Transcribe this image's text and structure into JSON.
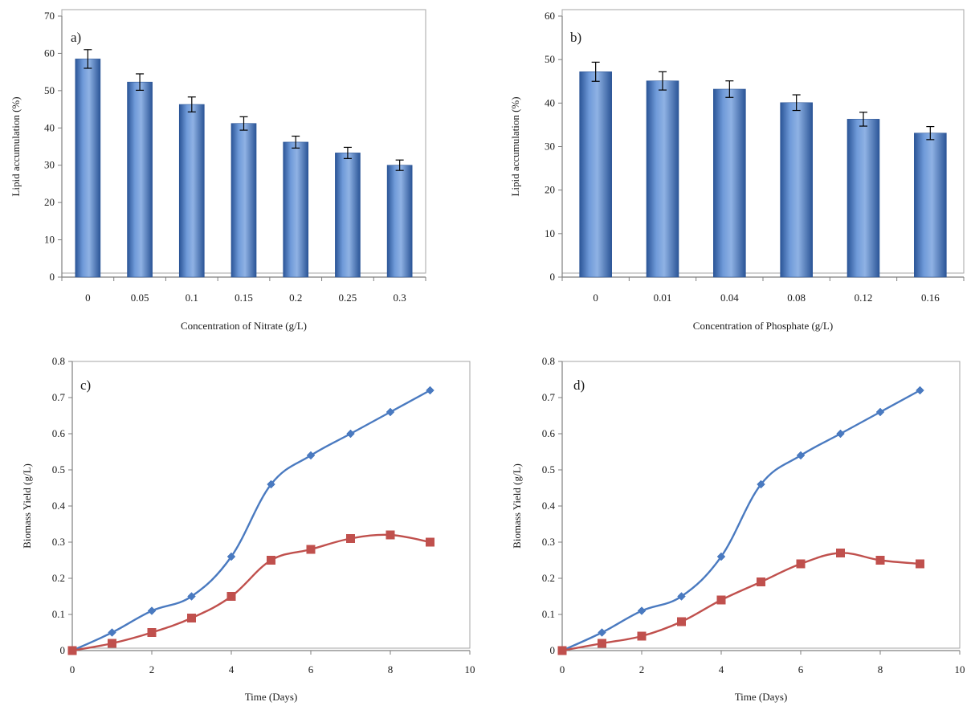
{
  "colors": {
    "bar": "#4a7cc7",
    "bar_dark": "#2b5597",
    "bar_light": "#8fb2e4",
    "series_blue": "#4a7ac0",
    "series_red": "#c0504d",
    "axis": "#7f7f7f",
    "frame": "#a6a6a6"
  },
  "chart_data": [
    {
      "type": "bar",
      "panel_label": "a)",
      "categories": [
        "0",
        "0.05",
        "0.1",
        "0.15",
        "0.2",
        "0.25",
        "0.3"
      ],
      "values": [
        58.5,
        52.3,
        46.3,
        41.2,
        36.2,
        33.3,
        30.0
      ],
      "errors": [
        2.5,
        2.2,
        2.0,
        1.8,
        1.6,
        1.5,
        1.4
      ],
      "xlabel": "Concentration of Nitrate (g/L)",
      "ylabel": "Lipid accumulation (%)",
      "ylim": [
        0,
        70
      ],
      "yticks": [
        "0",
        "10",
        "20",
        "30",
        "40",
        "50",
        "60",
        "70"
      ],
      "grid": false,
      "legend": "none"
    },
    {
      "type": "bar",
      "panel_label": "b)",
      "categories": [
        "0",
        "0.01",
        "0.04",
        "0.08",
        "0.12",
        "0.16"
      ],
      "values": [
        47.2,
        45.1,
        43.2,
        40.1,
        36.3,
        33.1
      ],
      "errors": [
        2.2,
        2.1,
        1.9,
        1.8,
        1.6,
        1.5
      ],
      "xlabel": "Concentration of Phosphate (g/L)",
      "ylabel": "Lipid accumulation (%)",
      "ylim": [
        0,
        60
      ],
      "yticks": [
        "0",
        "10",
        "20",
        "30",
        "40",
        "50",
        "60"
      ],
      "grid": false,
      "legend": "none"
    },
    {
      "type": "line",
      "panel_label": "c)",
      "x": [
        0,
        1,
        2,
        3,
        4,
        5,
        6,
        7,
        8,
        9
      ],
      "series": [
        {
          "marker": "diamond",
          "color": "#4a7ac0",
          "values": [
            0,
            0.05,
            0.11,
            0.15,
            0.26,
            0.46,
            0.54,
            0.6,
            0.66,
            0.72
          ]
        },
        {
          "marker": "square",
          "color": "#c0504d",
          "values": [
            0,
            0.02,
            0.05,
            0.09,
            0.15,
            0.25,
            0.28,
            0.31,
            0.32,
            0.3
          ]
        }
      ],
      "xlabel": "Time (Days)",
      "ylabel": "Biomass Yield (g/L)",
      "xlim": [
        0,
        10
      ],
      "ylim": [
        0,
        0.8
      ],
      "xticks": [
        "0",
        "2",
        "4",
        "6",
        "8",
        "10"
      ],
      "yticks": [
        "0",
        "0.1",
        "0.2",
        "0.3",
        "0.4",
        "0.5",
        "0.6",
        "0.7",
        "0.8"
      ],
      "grid": false,
      "legend": "none"
    },
    {
      "type": "line",
      "panel_label": "d)",
      "x": [
        0,
        1,
        2,
        3,
        4,
        5,
        6,
        7,
        8,
        9
      ],
      "series": [
        {
          "marker": "diamond",
          "color": "#4a7ac0",
          "values": [
            0,
            0.05,
            0.11,
            0.15,
            0.26,
            0.46,
            0.54,
            0.6,
            0.66,
            0.72
          ]
        },
        {
          "marker": "square",
          "color": "#c0504d",
          "values": [
            0,
            0.02,
            0.04,
            0.08,
            0.14,
            0.19,
            0.24,
            0.27,
            0.25,
            0.24
          ]
        }
      ],
      "xlabel": "Time (Days)",
      "ylabel": "Biomass Yield (g/L)",
      "xlim": [
        0,
        10
      ],
      "ylim": [
        0,
        0.8
      ],
      "xticks": [
        "0",
        "2",
        "4",
        "6",
        "8",
        "10"
      ],
      "yticks": [
        "0",
        "0.1",
        "0.2",
        "0.3",
        "0.4",
        "0.5",
        "0.6",
        "0.7",
        "0.8"
      ],
      "grid": false,
      "legend": "none"
    }
  ]
}
